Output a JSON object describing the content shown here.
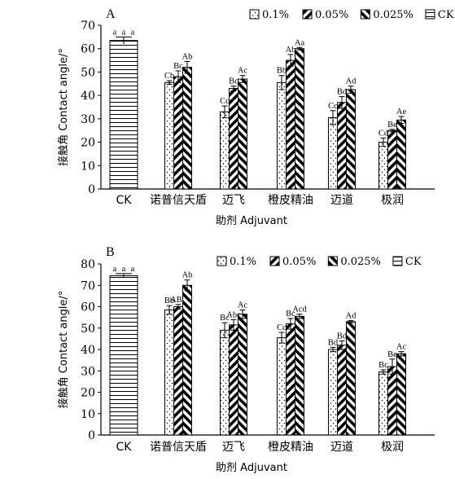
{
  "chart_data": [
    {
      "type": "bar",
      "panel": "A",
      "title": "",
      "xlabel": "助剂 Adjuvant",
      "ylabel": "接触角 Contact angle/°",
      "ylim": [
        0,
        70
      ],
      "yticks": [
        0,
        10,
        20,
        30,
        40,
        50,
        60,
        70
      ],
      "categories": [
        "CK",
        "诺普信天盾",
        "迈飞",
        "橙皮精油",
        "迈道",
        "极润"
      ],
      "legend": [
        "0.1%",
        "0.05%",
        "0.025%",
        "CK"
      ],
      "legend_position": "top-right",
      "series": [
        {
          "name": "0.1%",
          "pattern": "dots",
          "values": [
            63.5,
            45.5,
            33,
            45.5,
            30.5,
            20
          ],
          "errors": [
            1.5,
            0.8,
            2.5,
            3,
            3,
            1.8
          ],
          "labels": [
            "a",
            "Cb",
            "Cc",
            "Bb",
            "Cc",
            "Cd"
          ]
        },
        {
          "name": "0.05%",
          "pattern": "diag-right",
          "values": [
            63.5,
            48,
            43,
            55,
            37,
            25
          ],
          "errors": [
            1.5,
            2.5,
            1,
            2.5,
            2.5,
            0.5
          ],
          "labels": [
            "a",
            "Bc",
            "Bc",
            "Ab",
            "Bd",
            "Be"
          ]
        },
        {
          "name": "0.025%",
          "pattern": "diag-left",
          "values": [
            63.5,
            52,
            47,
            60,
            42.5,
            29.5
          ],
          "errors": [
            1.5,
            2.5,
            1.5,
            0.5,
            1.5,
            1.5
          ],
          "labels": [
            "a",
            "Ab",
            "Ac",
            "Aa",
            "Ad",
            "Ae"
          ]
        }
      ]
    },
    {
      "type": "bar",
      "panel": "B",
      "title": "",
      "xlabel": "助剂 Adjuvant",
      "ylabel": "接触角 Contact angle/°",
      "ylim": [
        0,
        80
      ],
      "yticks": [
        0,
        10,
        20,
        30,
        40,
        50,
        60,
        70,
        80
      ],
      "categories": [
        "CK",
        "诺普信天盾",
        "迈飞",
        "橙皮精油",
        "迈道",
        "极润"
      ],
      "legend": [
        "0.1%",
        "0.05%",
        "0.025%",
        "CK"
      ],
      "legend_position": "top-right",
      "series": [
        {
          "name": "0.1%",
          "pattern": "dots",
          "values": [
            74.5,
            58.5,
            49,
            45.5,
            40,
            29.5
          ],
          "errors": [
            1,
            2,
            3.5,
            2.5,
            1,
            1
          ],
          "labels": [
            "a",
            "Bb",
            "Bc",
            "Cc",
            "Bd",
            "Bc"
          ]
        },
        {
          "name": "0.05%",
          "pattern": "diag-right",
          "values": [
            74.5,
            60,
            51.5,
            52,
            42,
            32
          ],
          "errors": [
            1,
            1,
            2.5,
            2.5,
            2,
            3.5
          ],
          "labels": [
            "a",
            "ABb",
            "Abc",
            "Bc",
            "Bd",
            "Be"
          ]
        },
        {
          "name": "0.025%",
          "pattern": "diag-left",
          "values": [
            74.5,
            70,
            56.5,
            55.5,
            53,
            38
          ],
          "errors": [
            1,
            2.5,
            2,
            1,
            0.5,
            1
          ],
          "labels": [
            "a",
            "Ab",
            "Ac",
            "Acd",
            "Ad",
            "Ac"
          ]
        }
      ]
    }
  ]
}
